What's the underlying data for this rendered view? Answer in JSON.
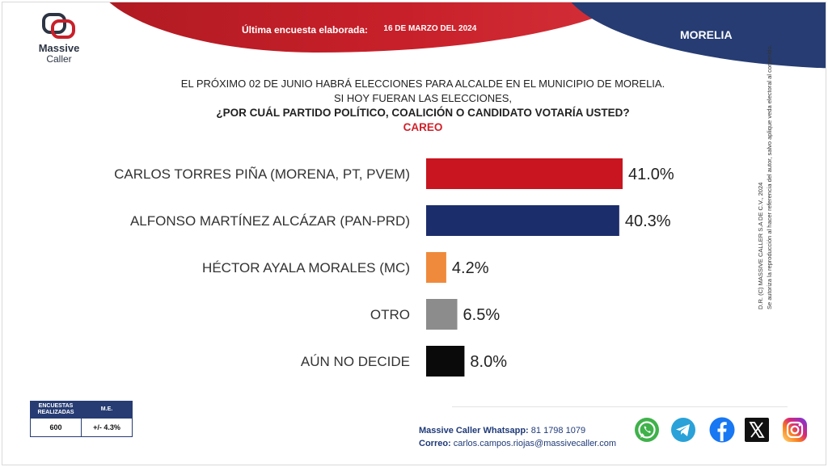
{
  "header": {
    "survey_label": "Última encuesta elaborada:",
    "survey_date": "16 DE MARZO DEL 2024",
    "city": "MORELIA"
  },
  "logo": {
    "line1": "Massive",
    "line2": "Caller"
  },
  "question": {
    "line1": "EL PRÓXIMO 02 DE JUNIO HABRÁ ELECCIONES PARA ALCALDE EN EL MUNICIPIO DE MORELIA.",
    "line2": "SI HOY FUERAN LAS ELECCIONES,",
    "line3": "¿POR CUÁL PARTIDO POLÍTICO, COALICIÓN O CANDIDATO VOTARÍA USTED?",
    "line4": "CAREO"
  },
  "chart_data": {
    "type": "bar",
    "orientation": "horizontal",
    "categories": [
      "CARLOS TORRES PIÑA (MORENA, PT, PVEM)",
      "ALFONSO MARTÍNEZ ALCÁZAR (PAN-PRD)",
      "HÉCTOR AYALA MORALES (MC)",
      "OTRO",
      "AÚN NO DECIDE"
    ],
    "values": [
      41.0,
      40.3,
      4.2,
      6.5,
      8.0
    ],
    "value_labels": [
      "41.0%",
      "40.3%",
      "4.2%",
      "6.5%",
      "8.0%"
    ],
    "colors": [
      "#c8151f",
      "#1c2d6b",
      "#ef8a3c",
      "#8c8c8c",
      "#0a0a0a"
    ],
    "unit": "%",
    "grid": false,
    "legend": "none"
  },
  "stats_table": {
    "col1_header": "ENCUESTAS REALIZADAS",
    "col2_header": "M.E.",
    "col1_value": "600",
    "col2_value": "+/- 4.3%"
  },
  "contact": {
    "whatsapp_label": "Massive Caller Whatsapp:",
    "whatsapp_value": "81 1798 1079",
    "email_label": "Correo:",
    "email_value": "carlos.campos.riojas@massivecaller.com"
  },
  "side_note": {
    "line1": "D.R. (C) MASSIVE CALLER S.A DE C.V., 2024",
    "line2": "Se autoriza la reproducción al hacer referencia del autor, salvo aplique veda electoral al contenido."
  },
  "socials": [
    "whatsapp-icon",
    "telegram-icon",
    "facebook-icon",
    "x-icon",
    "instagram-icon"
  ],
  "colors": {
    "red": "#c8202a",
    "navy": "#263c73"
  }
}
